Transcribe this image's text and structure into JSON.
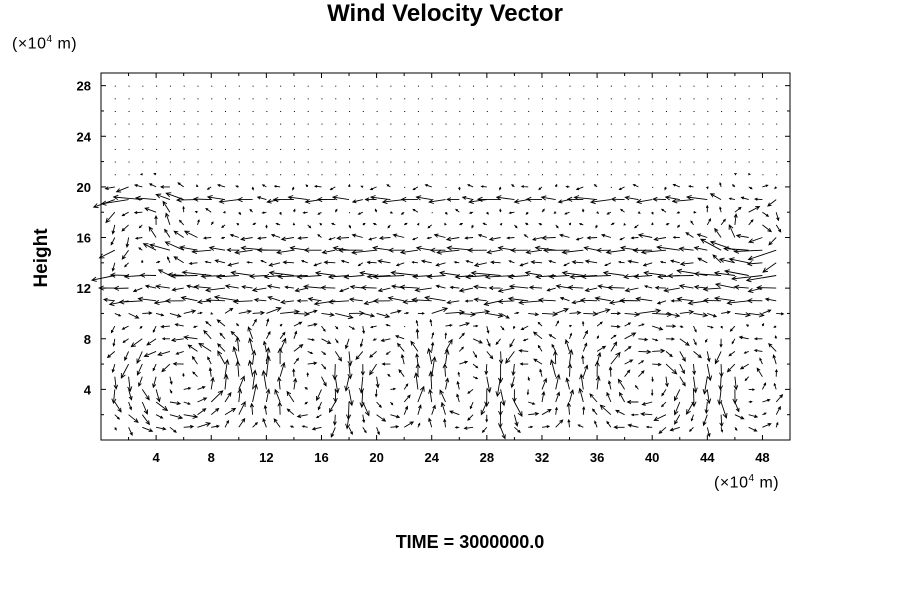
{
  "chart_data": {
    "type": "quiver",
    "title": "Wind Velocity Vector",
    "ylabel": "Height",
    "xlabel": "",
    "x_unit": {
      "prefix": "(×10",
      "exp": "4",
      "suffix": " m)"
    },
    "y_unit": {
      "prefix": "(×10",
      "exp": "4",
      "suffix": " m)"
    },
    "xlim": [
      0,
      50
    ],
    "ylim": [
      0,
      29
    ],
    "x_ticks": [
      4,
      8,
      12,
      16,
      20,
      24,
      28,
      32,
      36,
      40,
      44,
      48
    ],
    "y_ticks": [
      4,
      8,
      12,
      16,
      20,
      24,
      28
    ],
    "grid_x_spacing": 1,
    "grid_y_spacing": 1,
    "grid_x_start": 1,
    "grid_y_start": 1,
    "jets": [
      {
        "y": 19.1,
        "u": -1.7,
        "width": 0.7
      },
      {
        "y": 15.2,
        "u": -2.0,
        "width": 0.9
      },
      {
        "y": 12.9,
        "u": -2.3,
        "width": 0.9
      },
      {
        "y": 11.1,
        "u": -1.8,
        "width": 0.8
      },
      {
        "y": 10.0,
        "u": 1.6,
        "width": 0.7
      }
    ],
    "cells": [
      {
        "cx": 6,
        "cy": 4.8,
        "rx": 6,
        "ry": 4.5,
        "strength": 2.2
      },
      {
        "cx": 15,
        "cy": 4.5,
        "rx": 4,
        "ry": 4.5,
        "strength": -1.6
      },
      {
        "cx": 21,
        "cy": 4.5,
        "rx": 4,
        "ry": 4.5,
        "strength": 1.6
      },
      {
        "cx": 26.5,
        "cy": 4.5,
        "rx": 3.5,
        "ry": 4.5,
        "strength": -1.5
      },
      {
        "cx": 31,
        "cy": 4.5,
        "rx": 3,
        "ry": 4.5,
        "strength": 1.8
      },
      {
        "cx": 39.5,
        "cy": 4.5,
        "rx": 5,
        "ry": 4,
        "strength": -2.0
      },
      {
        "cx": 47,
        "cy": 4.5,
        "rx": 3,
        "ry": 4,
        "strength": 1.6
      },
      {
        "cx": 3,
        "cy": 16.5,
        "rx": 3,
        "ry": 3.5,
        "strength": 1.8
      },
      {
        "cx": 47.5,
        "cy": 16,
        "rx": 3,
        "ry": 3.5,
        "strength": -1.8
      }
    ]
  },
  "footer": {
    "label": "TIME = 3000000.0"
  }
}
